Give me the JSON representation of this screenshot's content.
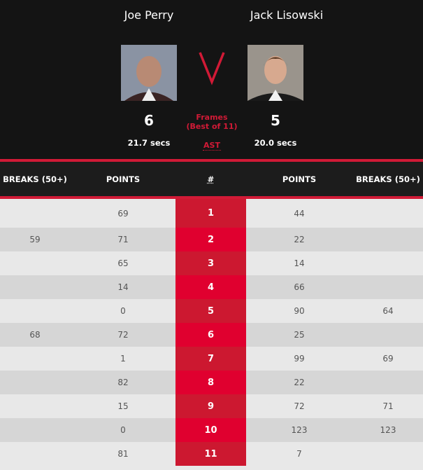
{
  "player1": {
    "name": "Joe Perry",
    "frames": "6",
    "avg_shot_time": "21.7 secs"
  },
  "player2": {
    "name": "Jack Lisowski",
    "frames": "5",
    "avg_shot_time": "20.0 secs"
  },
  "center": {
    "vs": "V",
    "frames_label": "Frames",
    "best_of": "(Best of 11)",
    "ast": "AST"
  },
  "accent": "#d11a36",
  "table": {
    "headers": {
      "p1_breaks": "BREAKS (50+)",
      "p1_points": "POINTS",
      "frame": "#",
      "p2_points": "POINTS",
      "p2_breaks": "BREAKS (50+)"
    },
    "rows": [
      {
        "p1_breaks": "",
        "p1_points": "69",
        "frame": "1",
        "p2_points": "44",
        "p2_breaks": ""
      },
      {
        "p1_breaks": "59",
        "p1_points": "71",
        "frame": "2",
        "p2_points": "22",
        "p2_breaks": ""
      },
      {
        "p1_breaks": "",
        "p1_points": "65",
        "frame": "3",
        "p2_points": "14",
        "p2_breaks": ""
      },
      {
        "p1_breaks": "",
        "p1_points": "14",
        "frame": "4",
        "p2_points": "66",
        "p2_breaks": ""
      },
      {
        "p1_breaks": "",
        "p1_points": "0",
        "frame": "5",
        "p2_points": "90",
        "p2_breaks": "64"
      },
      {
        "p1_breaks": "68",
        "p1_points": "72",
        "frame": "6",
        "p2_points": "25",
        "p2_breaks": ""
      },
      {
        "p1_breaks": "",
        "p1_points": "1",
        "frame": "7",
        "p2_points": "99",
        "p2_breaks": "69"
      },
      {
        "p1_breaks": "",
        "p1_points": "82",
        "frame": "8",
        "p2_points": "22",
        "p2_breaks": ""
      },
      {
        "p1_breaks": "",
        "p1_points": "15",
        "frame": "9",
        "p2_points": "72",
        "p2_breaks": "71"
      },
      {
        "p1_breaks": "",
        "p1_points": "0",
        "frame": "10",
        "p2_points": "123",
        "p2_breaks": "123"
      },
      {
        "p1_breaks": "",
        "p1_points": "81",
        "frame": "11",
        "p2_points": "7",
        "p2_breaks": ""
      }
    ]
  }
}
